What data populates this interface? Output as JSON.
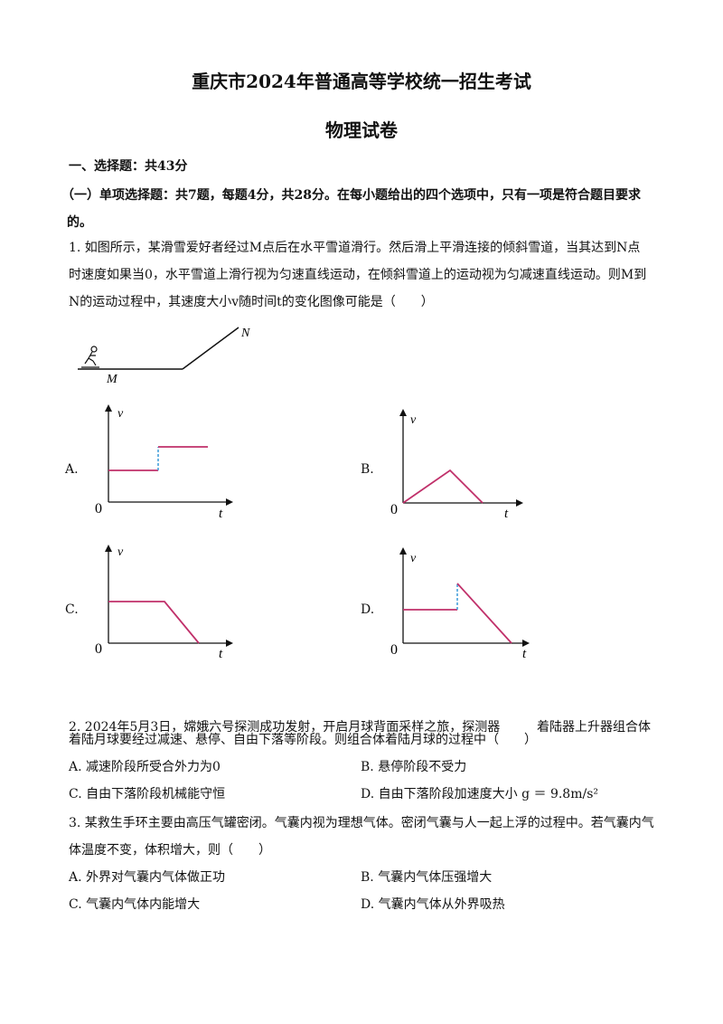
{
  "title": "重庆市2024年普通高等学校统一招生考试",
  "subtitle": "物理试卷",
  "section1": "一、选择题：共43分",
  "section1_sub_line1": "（一）单项选择题：共7题，每题4分，共28分。在每小题给出的四个选项中，只有一项是符合题目要求",
  "section1_sub_line2": "的。",
  "q1": {
    "line1": "1. 如图所示，某滑雪爱好者经过M点后在水平雪道滑行。然后滑上平滑连接的倾斜雪道，当其达到N点",
    "line2": "时速度如果当0，水平雪道上滑行视为匀速直线运动，在倾斜雪道上的运动视为匀减速直线运动。则M到",
    "line3": "N的运动过程中，其速度大小v随时间t的变化图像可能是（　　）",
    "fig_label_M": "M",
    "fig_label_N": "N",
    "options": [
      {
        "label": "A.",
        "axis_y": "v",
        "axis_x": "t",
        "origin": "0"
      },
      {
        "label": "B.",
        "axis_y": "v",
        "axis_x": "t",
        "origin": "0"
      },
      {
        "label": "C.",
        "axis_y": "v",
        "axis_x": "t",
        "origin": "0"
      },
      {
        "label": "D.",
        "axis_y": "v",
        "axis_x": "t",
        "origin": "0"
      }
    ]
  },
  "q2": {
    "line1a": "2. 2024年5月3日，嫦娥六号探测成功发射，开启月球背面采样之旅，探测器",
    "line1b": "着陆器上升器组合体",
    "line2": "着陆月球要经过减速、悬停、自由下落等阶段。则组合体着陆月球的过程中（　　）",
    "optA": "A. 减速阶段所受合外力为0",
    "optB": "B. 悬停阶段不受力",
    "optC": "C. 自由下落阶段机械能守恒",
    "optD": "D. 自由下落阶段加速度大小 g ＝ 9.8m/s²"
  },
  "q3": {
    "line1": "3. 某救生手环主要由高压气罐密闭。气囊内视为理想气体。密闭气囊与人一起上浮的过程中。若气囊内气",
    "line2": "体温度不变，体积增大，则（　　）",
    "optA": "A. 外界对气囊内气体做正功",
    "optB": "B. 气囊内气体压强增大",
    "optC": "C. 气囊内气体内能增大",
    "optD": "D. 气囊内气体从外界吸热"
  },
  "colors": {
    "curve": "#c0306a",
    "dash": "#3a9ad9",
    "axis": "#111111"
  }
}
